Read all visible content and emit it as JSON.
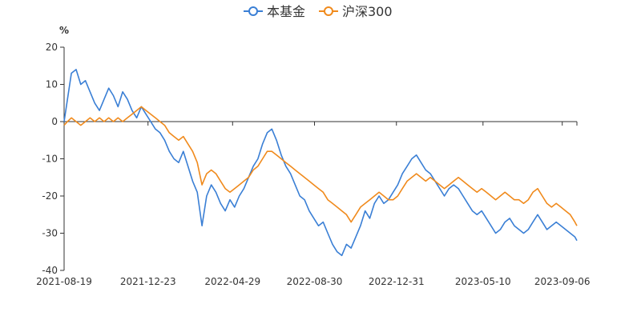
{
  "chart_data": {
    "type": "line",
    "title": "",
    "ylabel": "%",
    "xlabel": "",
    "ylim": [
      -40,
      20
    ],
    "yticks": [
      20,
      10,
      0,
      -10,
      -20,
      -30,
      -40
    ],
    "xticks": [
      "2021-08-19",
      "2021-12-23",
      "2022-04-29",
      "2022-08-30",
      "2022-12-31",
      "2023-05-10",
      "2023-09-06"
    ],
    "xrange": [
      "2021-08-19",
      "2023-09-28"
    ],
    "legend_position": "top-center",
    "series": [
      {
        "name": "本基金",
        "color": "#3a7fd5",
        "points": [
          [
            "2021-08-19",
            0
          ],
          [
            "2021-08-24",
            6
          ],
          [
            "2021-08-30",
            13
          ],
          [
            "2021-09-06",
            14
          ],
          [
            "2021-09-13",
            10
          ],
          [
            "2021-09-20",
            11
          ],
          [
            "2021-09-27",
            8
          ],
          [
            "2021-10-04",
            5
          ],
          [
            "2021-10-11",
            3
          ],
          [
            "2021-10-18",
            6
          ],
          [
            "2021-10-25",
            9
          ],
          [
            "2021-11-01",
            7
          ],
          [
            "2021-11-08",
            4
          ],
          [
            "2021-11-15",
            8
          ],
          [
            "2021-11-22",
            6
          ],
          [
            "2021-11-29",
            3
          ],
          [
            "2021-12-06",
            1
          ],
          [
            "2021-12-13",
            4
          ],
          [
            "2021-12-20",
            2
          ],
          [
            "2021-12-27",
            0
          ],
          [
            "2022-01-03",
            -2
          ],
          [
            "2022-01-10",
            -3
          ],
          [
            "2022-01-17",
            -5
          ],
          [
            "2022-01-24",
            -8
          ],
          [
            "2022-01-31",
            -10
          ],
          [
            "2022-02-07",
            -11
          ],
          [
            "2022-02-14",
            -8
          ],
          [
            "2022-02-21",
            -12
          ],
          [
            "2022-02-28",
            -16
          ],
          [
            "2022-03-07",
            -19
          ],
          [
            "2022-03-14",
            -28
          ],
          [
            "2022-03-21",
            -20
          ],
          [
            "2022-03-28",
            -17
          ],
          [
            "2022-04-04",
            -19
          ],
          [
            "2022-04-11",
            -22
          ],
          [
            "2022-04-18",
            -24
          ],
          [
            "2022-04-25",
            -21
          ],
          [
            "2022-05-02",
            -23
          ],
          [
            "2022-05-09",
            -20
          ],
          [
            "2022-05-16",
            -18
          ],
          [
            "2022-05-23",
            -15
          ],
          [
            "2022-05-30",
            -12
          ],
          [
            "2022-06-06",
            -10
          ],
          [
            "2022-06-13",
            -6
          ],
          [
            "2022-06-20",
            -3
          ],
          [
            "2022-06-27",
            -2
          ],
          [
            "2022-07-04",
            -5
          ],
          [
            "2022-07-11",
            -9
          ],
          [
            "2022-07-18",
            -12
          ],
          [
            "2022-07-25",
            -14
          ],
          [
            "2022-08-01",
            -17
          ],
          [
            "2022-08-08",
            -20
          ],
          [
            "2022-08-15",
            -21
          ],
          [
            "2022-08-22",
            -24
          ],
          [
            "2022-08-29",
            -26
          ],
          [
            "2022-09-05",
            -28
          ],
          [
            "2022-09-12",
            -27
          ],
          [
            "2022-09-19",
            -30
          ],
          [
            "2022-09-26",
            -33
          ],
          [
            "2022-10-03",
            -35
          ],
          [
            "2022-10-10",
            -36
          ],
          [
            "2022-10-17",
            -33
          ],
          [
            "2022-10-24",
            -34
          ],
          [
            "2022-10-31",
            -31
          ],
          [
            "2022-11-07",
            -28
          ],
          [
            "2022-11-14",
            -24
          ],
          [
            "2022-11-21",
            -26
          ],
          [
            "2022-11-28",
            -22
          ],
          [
            "2022-12-05",
            -20
          ],
          [
            "2022-12-12",
            -22
          ],
          [
            "2022-12-19",
            -21
          ],
          [
            "2022-12-26",
            -19
          ],
          [
            "2023-01-02",
            -17
          ],
          [
            "2023-01-09",
            -14
          ],
          [
            "2023-01-16",
            -12
          ],
          [
            "2023-01-23",
            -10
          ],
          [
            "2023-01-30",
            -9
          ],
          [
            "2023-02-06",
            -11
          ],
          [
            "2023-02-13",
            -13
          ],
          [
            "2023-02-20",
            -14
          ],
          [
            "2023-02-27",
            -16
          ],
          [
            "2023-03-06",
            -18
          ],
          [
            "2023-03-13",
            -20
          ],
          [
            "2023-03-20",
            -18
          ],
          [
            "2023-03-27",
            -17
          ],
          [
            "2023-04-03",
            -18
          ],
          [
            "2023-04-10",
            -20
          ],
          [
            "2023-04-17",
            -22
          ],
          [
            "2023-04-24",
            -24
          ],
          [
            "2023-05-01",
            -25
          ],
          [
            "2023-05-08",
            -24
          ],
          [
            "2023-05-15",
            -26
          ],
          [
            "2023-05-22",
            -28
          ],
          [
            "2023-05-29",
            -30
          ],
          [
            "2023-06-05",
            -29
          ],
          [
            "2023-06-12",
            -27
          ],
          [
            "2023-06-19",
            -26
          ],
          [
            "2023-06-26",
            -28
          ],
          [
            "2023-07-03",
            -29
          ],
          [
            "2023-07-10",
            -30
          ],
          [
            "2023-07-17",
            -29
          ],
          [
            "2023-07-24",
            -27
          ],
          [
            "2023-07-31",
            -25
          ],
          [
            "2023-08-07",
            -27
          ],
          [
            "2023-08-14",
            -29
          ],
          [
            "2023-08-21",
            -28
          ],
          [
            "2023-08-28",
            -27
          ],
          [
            "2023-09-04",
            -28
          ],
          [
            "2023-09-11",
            -29
          ],
          [
            "2023-09-18",
            -30
          ],
          [
            "2023-09-25",
            -31
          ],
          [
            "2023-09-28",
            -32
          ]
        ]
      },
      {
        "name": "沪深300",
        "color": "#f08a1c",
        "points": [
          [
            "2021-08-19",
            -1
          ],
          [
            "2021-08-24",
            0
          ],
          [
            "2021-08-30",
            1
          ],
          [
            "2021-09-06",
            0
          ],
          [
            "2021-09-13",
            -1
          ],
          [
            "2021-09-20",
            0
          ],
          [
            "2021-09-27",
            1
          ],
          [
            "2021-10-04",
            0
          ],
          [
            "2021-10-11",
            1
          ],
          [
            "2021-10-18",
            0
          ],
          [
            "2021-10-25",
            1
          ],
          [
            "2021-11-01",
            0
          ],
          [
            "2021-11-08",
            1
          ],
          [
            "2021-11-15",
            0
          ],
          [
            "2021-11-22",
            1
          ],
          [
            "2021-11-29",
            2
          ],
          [
            "2021-12-06",
            3
          ],
          [
            "2021-12-13",
            4
          ],
          [
            "2021-12-20",
            3
          ],
          [
            "2021-12-27",
            2
          ],
          [
            "2022-01-03",
            1
          ],
          [
            "2022-01-10",
            0
          ],
          [
            "2022-01-17",
            -1
          ],
          [
            "2022-01-24",
            -3
          ],
          [
            "2022-01-31",
            -4
          ],
          [
            "2022-02-07",
            -5
          ],
          [
            "2022-02-14",
            -4
          ],
          [
            "2022-02-21",
            -6
          ],
          [
            "2022-02-28",
            -8
          ],
          [
            "2022-03-07",
            -11
          ],
          [
            "2022-03-14",
            -17
          ],
          [
            "2022-03-21",
            -14
          ],
          [
            "2022-03-28",
            -13
          ],
          [
            "2022-04-04",
            -14
          ],
          [
            "2022-04-11",
            -16
          ],
          [
            "2022-04-18",
            -18
          ],
          [
            "2022-04-25",
            -19
          ],
          [
            "2022-05-02",
            -18
          ],
          [
            "2022-05-09",
            -17
          ],
          [
            "2022-05-16",
            -16
          ],
          [
            "2022-05-23",
            -15
          ],
          [
            "2022-05-30",
            -13
          ],
          [
            "2022-06-06",
            -12
          ],
          [
            "2022-06-13",
            -10
          ],
          [
            "2022-06-20",
            -8
          ],
          [
            "2022-06-27",
            -8
          ],
          [
            "2022-07-04",
            -9
          ],
          [
            "2022-07-11",
            -10
          ],
          [
            "2022-07-18",
            -11
          ],
          [
            "2022-07-25",
            -12
          ],
          [
            "2022-08-01",
            -13
          ],
          [
            "2022-08-08",
            -14
          ],
          [
            "2022-08-15",
            -15
          ],
          [
            "2022-08-22",
            -16
          ],
          [
            "2022-08-29",
            -17
          ],
          [
            "2022-09-05",
            -18
          ],
          [
            "2022-09-12",
            -19
          ],
          [
            "2022-09-19",
            -21
          ],
          [
            "2022-09-26",
            -22
          ],
          [
            "2022-10-03",
            -23
          ],
          [
            "2022-10-10",
            -24
          ],
          [
            "2022-10-17",
            -25
          ],
          [
            "2022-10-24",
            -27
          ],
          [
            "2022-10-31",
            -25
          ],
          [
            "2022-11-07",
            -23
          ],
          [
            "2022-11-14",
            -22
          ],
          [
            "2022-11-21",
            -21
          ],
          [
            "2022-11-28",
            -20
          ],
          [
            "2022-12-05",
            -19
          ],
          [
            "2022-12-12",
            -20
          ],
          [
            "2022-12-19",
            -21
          ],
          [
            "2022-12-26",
            -21
          ],
          [
            "2023-01-02",
            -20
          ],
          [
            "2023-01-09",
            -18
          ],
          [
            "2023-01-16",
            -16
          ],
          [
            "2023-01-23",
            -15
          ],
          [
            "2023-01-30",
            -14
          ],
          [
            "2023-02-06",
            -15
          ],
          [
            "2023-02-13",
            -16
          ],
          [
            "2023-02-20",
            -15
          ],
          [
            "2023-02-27",
            -16
          ],
          [
            "2023-03-06",
            -17
          ],
          [
            "2023-03-13",
            -18
          ],
          [
            "2023-03-20",
            -17
          ],
          [
            "2023-03-27",
            -16
          ],
          [
            "2023-04-03",
            -15
          ],
          [
            "2023-04-10",
            -16
          ],
          [
            "2023-04-17",
            -17
          ],
          [
            "2023-04-24",
            -18
          ],
          [
            "2023-05-01",
            -19
          ],
          [
            "2023-05-08",
            -18
          ],
          [
            "2023-05-15",
            -19
          ],
          [
            "2023-05-22",
            -20
          ],
          [
            "2023-05-29",
            -21
          ],
          [
            "2023-06-05",
            -20
          ],
          [
            "2023-06-12",
            -19
          ],
          [
            "2023-06-19",
            -20
          ],
          [
            "2023-06-26",
            -21
          ],
          [
            "2023-07-03",
            -21
          ],
          [
            "2023-07-10",
            -22
          ],
          [
            "2023-07-17",
            -21
          ],
          [
            "2023-07-24",
            -19
          ],
          [
            "2023-07-31",
            -18
          ],
          [
            "2023-08-07",
            -20
          ],
          [
            "2023-08-14",
            -22
          ],
          [
            "2023-08-21",
            -23
          ],
          [
            "2023-08-28",
            -22
          ],
          [
            "2023-09-04",
            -23
          ],
          [
            "2023-09-11",
            -24
          ],
          [
            "2023-09-18",
            -25
          ],
          [
            "2023-09-25",
            -27
          ],
          [
            "2023-09-28",
            -28
          ]
        ]
      }
    ]
  }
}
